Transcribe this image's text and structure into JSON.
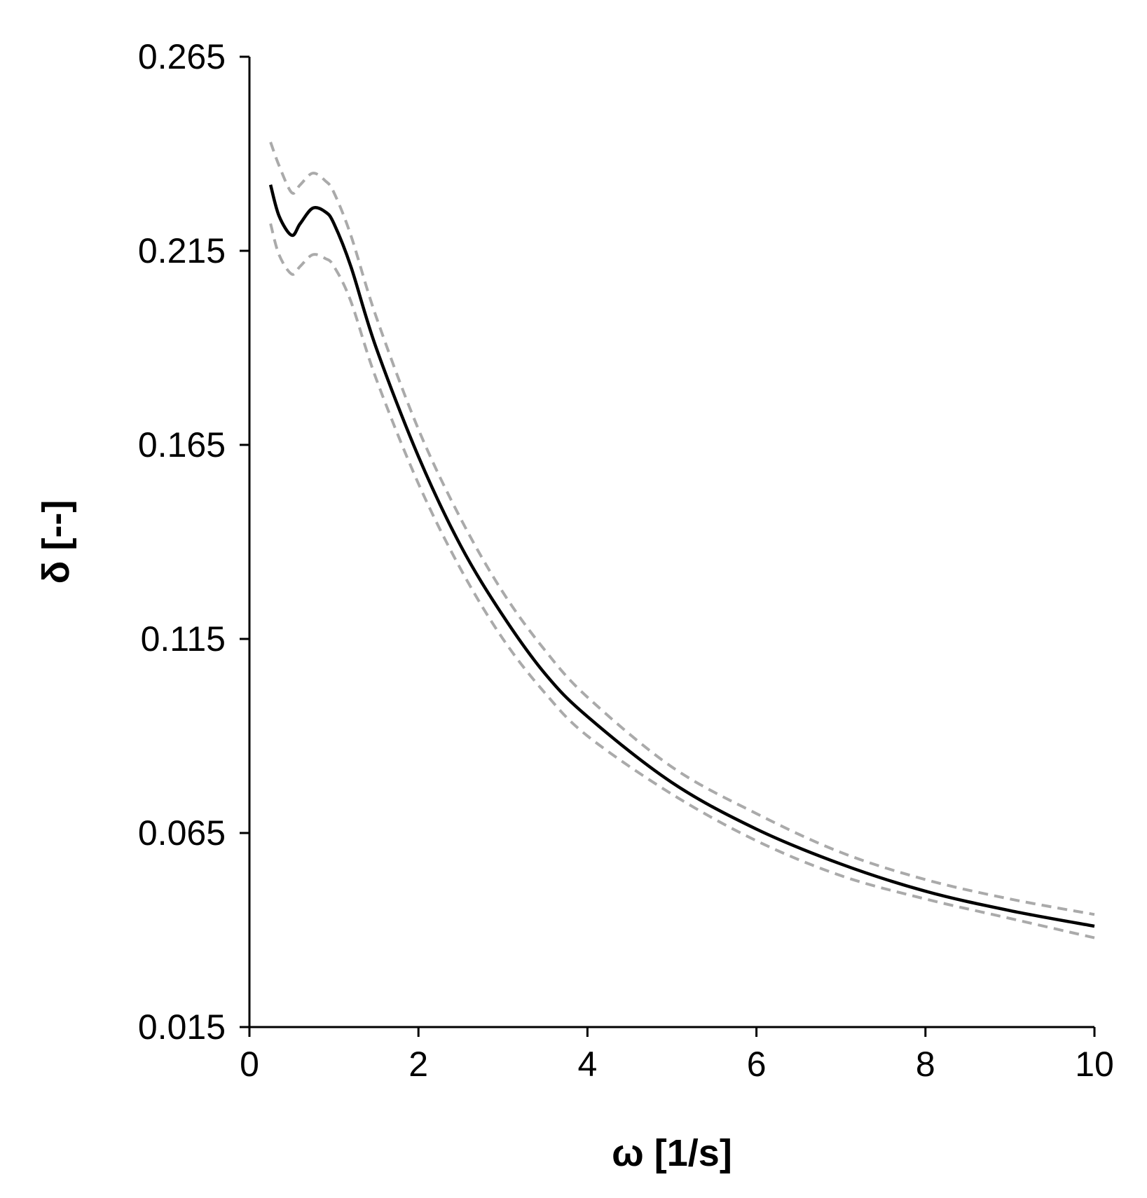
{
  "chart_data": {
    "type": "line",
    "title": "",
    "xlabel": "ω [1/s]",
    "ylabel": "δ [--]",
    "xlim": [
      0,
      10
    ],
    "ylim": [
      0.015,
      0.265
    ],
    "xticks": [
      0,
      2,
      4,
      6,
      8,
      10
    ],
    "yticks": [
      0.015,
      0.065,
      0.115,
      0.165,
      0.215,
      0.265
    ],
    "xtick_labels": [
      "0",
      "2",
      "4",
      "6",
      "8",
      "10"
    ],
    "ytick_labels": [
      "0.015",
      "0.065",
      "0.115",
      "0.165",
      "0.215",
      "0.265"
    ],
    "grid": false,
    "legend": "none",
    "series": [
      {
        "style": "solid",
        "color": "#000000",
        "x": [
          0.25,
          0.35,
          0.5,
          0.6,
          0.75,
          0.9,
          1.0,
          1.2,
          1.5,
          2.0,
          2.5,
          3.0,
          3.5,
          4.0,
          5.0,
          6.0,
          7.0,
          8.0,
          9.0,
          10.0
        ],
        "y": [
          0.232,
          0.224,
          0.219,
          0.222,
          0.226,
          0.225,
          0.222,
          0.211,
          0.19,
          0.162,
          0.139,
          0.121,
          0.106,
          0.095,
          0.078,
          0.066,
          0.057,
          0.05,
          0.045,
          0.041
        ]
      },
      {
        "style": "dashed",
        "color": "#aaaaaa",
        "x": [
          0.25,
          0.35,
          0.5,
          0.6,
          0.75,
          0.9,
          1.0,
          1.2,
          1.5,
          2.0,
          2.5,
          3.0,
          3.5,
          4.0,
          5.0,
          6.0,
          7.0,
          8.0,
          9.0,
          10.0
        ],
        "y": [
          0.243,
          0.237,
          0.23,
          0.232,
          0.235,
          0.233,
          0.23,
          0.219,
          0.198,
          0.169,
          0.146,
          0.127,
          0.112,
          0.1,
          0.082,
          0.07,
          0.06,
          0.053,
          0.048,
          0.044
        ]
      },
      {
        "style": "dashed",
        "color": "#aaaaaa",
        "x": [
          0.25,
          0.35,
          0.5,
          0.6,
          0.75,
          0.9,
          1.0,
          1.2,
          1.5,
          2.0,
          2.5,
          3.0,
          3.5,
          4.0,
          5.0,
          6.0,
          7.0,
          8.0,
          9.0,
          10.0
        ],
        "y": [
          0.222,
          0.214,
          0.209,
          0.211,
          0.214,
          0.213,
          0.211,
          0.202,
          0.182,
          0.155,
          0.133,
          0.115,
          0.101,
          0.09,
          0.075,
          0.063,
          0.054,
          0.048,
          0.043,
          0.038
        ]
      }
    ]
  }
}
